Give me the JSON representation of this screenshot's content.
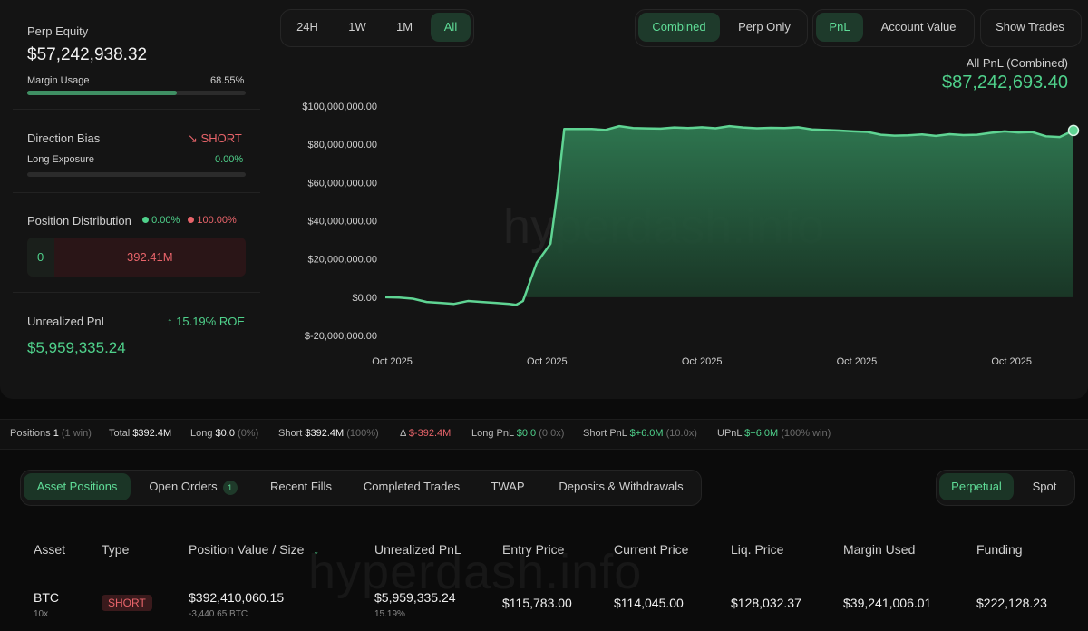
{
  "left": {
    "perp_equity_label": "Perp Equity",
    "perp_equity_value": "$57,242,938.32",
    "margin_usage_label": "Margin Usage",
    "margin_usage_value": "68.55%",
    "margin_usage_fraction": 0.6855,
    "direction_bias_label": "Direction Bias",
    "direction_bias_value": "SHORT",
    "long_exposure_label": "Long Exposure",
    "long_exposure_value": "0.00%",
    "position_distribution_label": "Position Distribution",
    "dist_long_pct": "0.00%",
    "dist_short_pct": "100.00%",
    "dist_long_value": "0",
    "dist_short_value": "392.41M",
    "unrealized_pnl_label": "Unrealized PnL",
    "roe_label": "15.19% ROE",
    "unrealized_pnl_value": "$5,959,335.24"
  },
  "time_range": {
    "options": [
      "24H",
      "1W",
      "1M",
      "All"
    ],
    "active": "All"
  },
  "view_mode": {
    "options": [
      "Combined",
      "Perp Only"
    ],
    "active": "Combined"
  },
  "metric_mode": {
    "options": [
      "PnL",
      "Account Value"
    ],
    "active": "PnL"
  },
  "show_trades_label": "Show Trades",
  "chart_header": {
    "label": "All PnL (Combined)",
    "value": "$87,242,693.40"
  },
  "watermark": "hyperdash.info",
  "chart_data": {
    "type": "area",
    "y_ticks": [
      "$100,000,000.00",
      "$80,000,000.00",
      "$60,000,000.00",
      "$40,000,000.00",
      "$20,000,000.00",
      "$0.00",
      "$-20,000,000.00"
    ],
    "x_ticks": [
      "Oct 2025",
      "Oct 2025",
      "Oct 2025",
      "Oct 2025",
      "Oct 2025"
    ],
    "ylim": [
      -20000000,
      100000000
    ],
    "xlim": [
      0,
      100
    ],
    "series": [
      {
        "x": [
          0,
          2,
          4,
          6,
          8,
          10,
          12,
          14,
          16,
          18,
          19,
          20,
          21,
          22,
          23,
          24,
          25,
          26,
          27,
          28,
          30,
          32,
          34,
          36,
          38,
          40,
          42,
          44,
          46,
          48,
          50,
          52,
          54,
          56,
          58,
          60,
          62,
          64,
          66,
          68,
          70,
          72,
          74,
          76,
          78,
          80,
          82,
          84,
          86,
          88,
          90,
          92,
          94,
          96,
          98,
          100
        ],
        "y": [
          0,
          -200000,
          -800000,
          -2500000,
          -3000000,
          -3500000,
          -2000000,
          -2500000,
          -3000000,
          -3500000,
          -4000000,
          -2000000,
          8000000,
          18000000,
          23000000,
          28000000,
          55000000,
          88000000,
          88000000,
          88000000,
          88000000,
          87500000,
          89500000,
          88500000,
          88300000,
          88200000,
          88800000,
          88500000,
          88900000,
          88400000,
          89500000,
          88800000,
          88400000,
          88600000,
          88500000,
          88900000,
          87800000,
          87500000,
          87200000,
          86800000,
          86500000,
          85000000,
          84500000,
          84700000,
          85200000,
          84400000,
          85300000,
          84800000,
          85000000,
          86000000,
          86800000,
          86200000,
          86400000,
          84200000,
          83800000,
          87242693
        ]
      }
    ]
  },
  "stats": {
    "positions_label": "Positions",
    "positions_value": "1",
    "positions_win": "(1 win)",
    "total_label": "Total",
    "total_value": "$392.4M",
    "long_label": "Long",
    "long_value": "$0.0",
    "long_pct": "(0%)",
    "short_label": "Short",
    "short_value": "$392.4M",
    "short_pct": "(100%)",
    "delta_label": "Δ",
    "delta_value": "$-392.4M",
    "long_pnl_label": "Long PnL",
    "long_pnl_value": "$0.0",
    "long_pnl_ratio": "(0.0x)",
    "short_pnl_label": "Short PnL",
    "short_pnl_value": "$+6.0M",
    "short_pnl_ratio": "(10.0x)",
    "upnl_label": "UPnL",
    "upnl_value": "$+6.0M",
    "upnl_win": "(100% win)"
  },
  "tabs": {
    "items": [
      "Asset Positions",
      "Open Orders",
      "Recent Fills",
      "Completed Trades",
      "TWAP",
      "Deposits & Withdrawals"
    ],
    "active": "Asset Positions",
    "open_orders_count": "1"
  },
  "market_tabs": {
    "items": [
      "Perpetual",
      "Spot"
    ],
    "active": "Perpetual"
  },
  "table": {
    "headers": [
      "Asset",
      "Type",
      "Position Value / Size",
      "Unrealized PnL",
      "Entry Price",
      "Current Price",
      "Liq. Price",
      "Margin Used",
      "Funding"
    ],
    "rows": [
      {
        "asset": "BTC",
        "leverage": "10x",
        "type": "SHORT",
        "position_value": "$392,410,060.15",
        "size": "-3,440.65 BTC",
        "unrealized_pnl": "$5,959,335.24",
        "pnl_pct": "15.19%",
        "entry_price": "$115,783.00",
        "current_price": "$114,045.00",
        "liq_price": "$128,032.37",
        "margin_used": "$39,241,006.01",
        "funding": "$222,128.23"
      }
    ]
  },
  "colors": {
    "accent": "#4fd18b",
    "negative": "#e8646a",
    "background": "#0b0b0b",
    "panel": "#141414"
  }
}
